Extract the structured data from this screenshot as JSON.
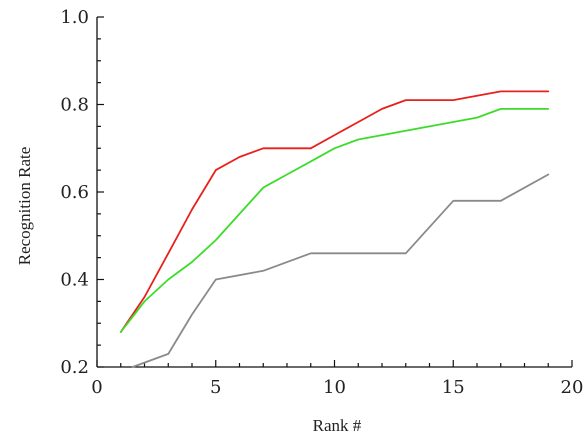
{
  "chart_data": {
    "type": "line",
    "title": "",
    "xlabel": "Rank #",
    "ylabel": "Recognition Rate",
    "xlim": [
      0,
      20
    ],
    "ylim": [
      0.2,
      1.0
    ],
    "xticks": [
      "0",
      "5",
      "10",
      "15",
      "20"
    ],
    "yticks": [
      "0.2",
      "0.4",
      "0.6",
      "0.8",
      "1.0"
    ],
    "grid": false,
    "legend": "none",
    "series": [
      {
        "color": "#e8201c",
        "x": [
          1,
          2,
          3,
          4,
          5,
          6,
          7,
          8,
          9,
          10,
          11,
          12,
          13,
          14,
          15,
          16,
          17,
          18,
          19
        ],
        "y": [
          0.28,
          0.36,
          0.46,
          0.56,
          0.65,
          0.68,
          0.7,
          0.7,
          0.7,
          0.73,
          0.76,
          0.79,
          0.81,
          0.81,
          0.81,
          0.82,
          0.83,
          0.83,
          0.83
        ]
      },
      {
        "color": "#3ddc2a",
        "x": [
          1,
          2,
          3,
          4,
          5,
          6,
          7,
          8,
          9,
          10,
          11,
          12,
          13,
          14,
          15,
          16,
          17,
          18,
          19
        ],
        "y": [
          0.28,
          0.35,
          0.4,
          0.44,
          0.49,
          0.55,
          0.61,
          0.64,
          0.67,
          0.7,
          0.72,
          0.73,
          0.74,
          0.75,
          0.76,
          0.77,
          0.79,
          0.79,
          0.79
        ]
      },
      {
        "color": "#8a8a8a",
        "x": [
          1.5,
          3,
          4,
          5,
          7,
          9,
          13,
          15,
          17,
          19
        ],
        "y": [
          0.2,
          0.23,
          0.32,
          0.4,
          0.42,
          0.46,
          0.46,
          0.58,
          0.58,
          0.64
        ]
      }
    ]
  }
}
